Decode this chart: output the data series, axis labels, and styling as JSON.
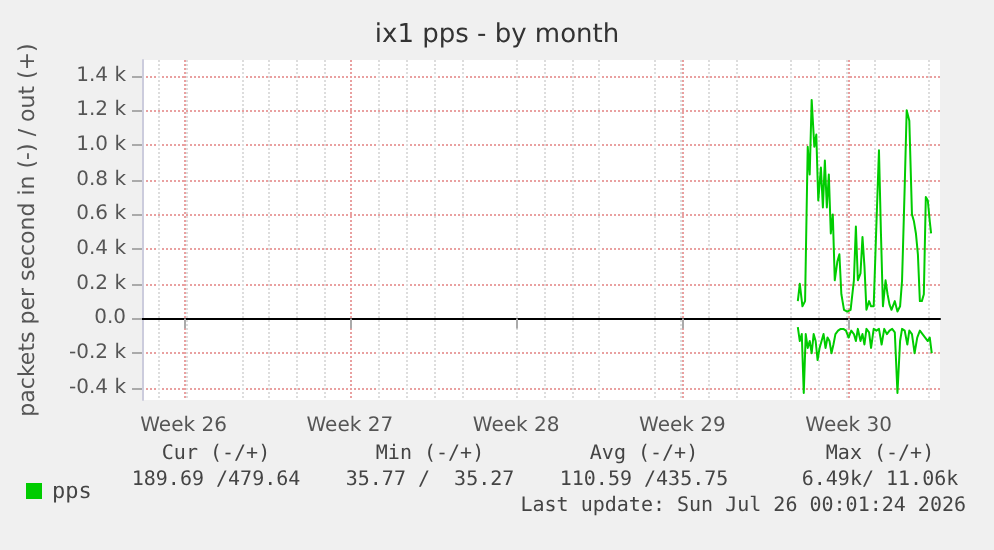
{
  "chart_data": {
    "type": "line",
    "title": "ix1 pps - by month",
    "ylabel": "packets per second in (-) / out (+)",
    "xlim": [
      "2026-06-23T18:00",
      "2026-07-27T08:20"
    ],
    "xticks": [
      {
        "value": "2026-06-25T12:00",
        "label": "Week 26"
      },
      {
        "value": "2026-07-02T12:00",
        "label": "Week 27"
      },
      {
        "value": "2026-07-09T12:00",
        "label": "Week 28"
      },
      {
        "value": "2026-07-16T12:00",
        "label": "Week 29"
      },
      {
        "value": "2026-07-23T12:00",
        "label": "Week 30"
      }
    ],
    "ylim": [
      -470,
      1490
    ],
    "yticks": [
      {
        "value": -400,
        "label": "-0.4 k"
      },
      {
        "value": -200,
        "label": "-0.2 k"
      },
      {
        "value": 0,
        "label": "0.0"
      },
      {
        "value": 200,
        "label": "0.2 k"
      },
      {
        "value": 400,
        "label": "0.4 k"
      },
      {
        "value": 600,
        "label": "0.6 k"
      },
      {
        "value": 800,
        "label": "0.8 k"
      },
      {
        "value": 1000,
        "label": "1.0 k"
      },
      {
        "value": 1200,
        "label": "1.2 k"
      },
      {
        "value": 1400,
        "label": "1.4 k"
      }
    ],
    "grid": true,
    "legend": "bottom left",
    "marker": "none",
    "series": [
      {
        "name": "pps",
        "color": "#00cc00",
        "x": [
          "2026-07-21T08:40",
          "2026-07-21T10:40",
          "2026-07-21T13:20",
          "2026-07-21T16:00",
          "2026-07-21T18:40",
          "2026-07-21T20:40",
          "2026-07-21T22:40",
          "2026-07-22T01:20",
          "2026-07-22T03:20",
          "2026-07-22T05:20",
          "2026-07-22T08:00",
          "2026-07-22T10:00",
          "2026-07-22T12:00",
          "2026-07-22T14:00",
          "2026-07-22T16:00",
          "2026-07-22T18:00",
          "2026-07-22T20:00",
          "2026-07-22T22:00",
          "2026-07-23T00:40",
          "2026-07-23T02:40",
          "2026-07-23T04:40",
          "2026-07-23T07:20",
          "2026-07-23T10:40",
          "2026-07-23T14:00",
          "2026-07-23T17:20",
          "2026-07-23T19:20",
          "2026-07-23T21:20",
          "2026-07-24T00:00",
          "2026-07-24T02:00",
          "2026-07-24T04:00",
          "2026-07-24T06:00",
          "2026-07-24T08:40",
          "2026-07-24T10:40",
          "2026-07-24T13:20",
          "2026-07-24T16:00",
          "2026-07-24T18:40",
          "2026-07-24T20:40",
          "2026-07-24T22:40",
          "2026-07-25T01:20",
          "2026-07-25T03:20",
          "2026-07-25T05:20",
          "2026-07-25T07:20",
          "2026-07-25T10:40",
          "2026-07-25T13:20",
          "2026-07-25T16:00",
          "2026-07-25T18:00",
          "2026-07-25T20:40",
          "2026-07-25T22:40",
          "2026-07-26T01:20",
          "2026-07-26T04:00",
          "2026-07-26T06:00",
          "2026-07-26T08:00",
          "2026-07-26T10:00",
          "2026-07-26T12:00",
          "2026-07-26T14:00",
          "2026-07-26T16:00",
          "2026-07-26T18:00",
          "2026-07-26T20:00",
          "2026-07-26T22:00",
          "2026-07-26T23:20"
        ],
        "values": [
          100,
          200,
          70,
          100,
          990,
          830,
          1260,
          990,
          1060,
          680,
          870,
          640,
          910,
          640,
          830,
          490,
          600,
          220,
          330,
          370,
          140,
          50,
          40,
          50,
          220,
          530,
          220,
          260,
          470,
          300,
          50,
          100,
          70,
          70,
          530,
          970,
          490,
          70,
          220,
          140,
          80,
          50,
          100,
          40,
          70,
          220,
          760,
          1200,
          1140,
          600,
          560,
          490,
          370,
          100,
          100,
          140,
          700,
          680,
          560,
          490
        ]
      },
      {
        "color": "#00cc00",
        "x": [
          "2026-07-21T08:40",
          "2026-07-21T10:40",
          "2026-07-21T12:40",
          "2026-07-21T14:40",
          "2026-07-21T16:40",
          "2026-07-21T18:40",
          "2026-07-21T20:40",
          "2026-07-21T22:40",
          "2026-07-22T00:40",
          "2026-07-22T02:40",
          "2026-07-22T04:40",
          "2026-07-22T06:40",
          "2026-07-22T08:40",
          "2026-07-22T10:40",
          "2026-07-22T12:40",
          "2026-07-22T14:40",
          "2026-07-22T16:40",
          "2026-07-22T18:40",
          "2026-07-22T20:40",
          "2026-07-22T22:40",
          "2026-07-23T01:20",
          "2026-07-23T04:00",
          "2026-07-23T06:40",
          "2026-07-23T09:20",
          "2026-07-23T12:00",
          "2026-07-23T14:40",
          "2026-07-23T17:20",
          "2026-07-23T19:20",
          "2026-07-23T21:20",
          "2026-07-24T00:00",
          "2026-07-24T02:00",
          "2026-07-24T04:00",
          "2026-07-24T06:00",
          "2026-07-24T08:40",
          "2026-07-24T10:40",
          "2026-07-24T13:20",
          "2026-07-24T16:00",
          "2026-07-24T18:40",
          "2026-07-24T21:20",
          "2026-07-25T00:00",
          "2026-07-25T02:40",
          "2026-07-25T05:20",
          "2026-07-25T08:00",
          "2026-07-25T10:40",
          "2026-07-25T13:20",
          "2026-07-25T16:00",
          "2026-07-25T18:00",
          "2026-07-25T20:40",
          "2026-07-25T23:20",
          "2026-07-26T01:20",
          "2026-07-26T04:00",
          "2026-07-26T06:40",
          "2026-07-26T09:20",
          "2026-07-26T12:00",
          "2026-07-26T14:40",
          "2026-07-26T17:20",
          "2026-07-26T20:00",
          "2026-07-26T22:00",
          "2026-07-27T00:00"
        ],
        "values": [
          -50,
          -130,
          -90,
          -430,
          -90,
          -170,
          -130,
          -200,
          -90,
          -130,
          -240,
          -170,
          -130,
          -90,
          -170,
          -110,
          -130,
          -200,
          -150,
          -90,
          -70,
          -60,
          -60,
          -70,
          -110,
          -70,
          -90,
          -130,
          -60,
          -130,
          -90,
          -150,
          -60,
          -80,
          -170,
          -60,
          -70,
          -60,
          -150,
          -60,
          -90,
          -70,
          -60,
          -80,
          -430,
          -130,
          -60,
          -70,
          -150,
          -70,
          -90,
          -200,
          -110,
          -70,
          -90,
          -110,
          -130,
          -110,
          -200
        ]
      }
    ],
    "annotations": [
      "Cur (-/+)",
      "Min (-/+)",
      "Avg (-/+)",
      "Max (-/+)",
      "189.69 /479.64",
      "35.77 /  35.27",
      "110.59 /435.75",
      "6.49k/ 11.06k",
      "Last update: Sun Jul 26 00:01:24 2026"
    ]
  }
}
